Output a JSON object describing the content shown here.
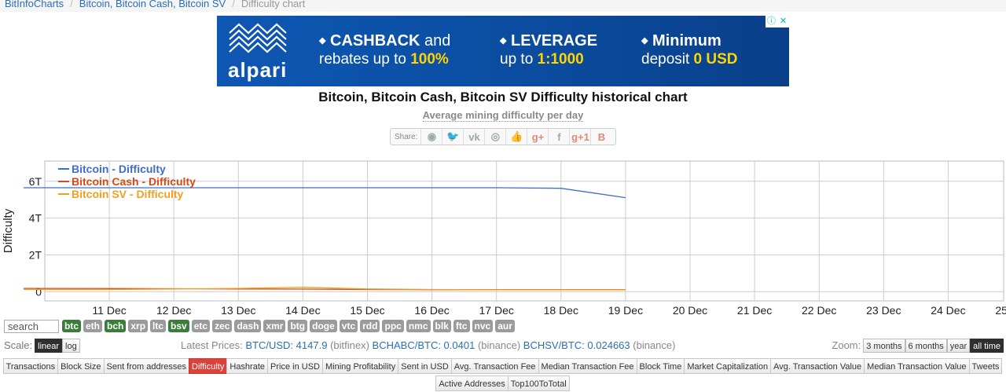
{
  "breadcrumb": {
    "home": "BitInfoCharts",
    "section": "Bitcoin, Bitcoin Cash, Bitcoin SV",
    "current": "Difficulty chart"
  },
  "ad": {
    "brand": "alpari",
    "col1": {
      "line1_bullet": "◆",
      "line1_hl": "CASHBACK",
      "line1_rest": " and",
      "line2": "rebates up to ",
      "line2_hl": "100%"
    },
    "col2": {
      "line1_bullet": "◆",
      "line1_hl": "LEVERAGE",
      "line2": "up to ",
      "line2_hl": "1:1000"
    },
    "col3": {
      "line1_bullet": "◆",
      "line1_hl": "Minimum",
      "line2": "deposit ",
      "line2_hl": "0 USD"
    },
    "info_icon": "ⓘ",
    "close_icon": "✕"
  },
  "page": {
    "title": "Bitcoin, Bitcoin Cash, Bitcoin SV Difficulty historical chart",
    "subtitle": "Average mining difficulty per day"
  },
  "share": {
    "label": "Share:",
    "icons": [
      {
        "name": "reddit-icon",
        "glyph": "◉",
        "cls": ""
      },
      {
        "name": "twitter-icon",
        "glyph": "🐦",
        "cls": "blue"
      },
      {
        "name": "vk-icon",
        "glyph": "vk",
        "cls": ""
      },
      {
        "name": "weibo-icon",
        "glyph": "◎",
        "cls": ""
      },
      {
        "name": "like-icon",
        "glyph": "👍",
        "cls": ""
      },
      {
        "name": "gplus-icon",
        "glyph": "g+",
        "cls": "red"
      },
      {
        "name": "facebook-icon",
        "glyph": "f",
        "cls": ""
      },
      {
        "name": "gplus-one-icon",
        "glyph": "g+1",
        "cls": "red"
      },
      {
        "name": "blogger-icon",
        "glyph": "B",
        "cls": "red"
      }
    ]
  },
  "chart_data": {
    "type": "line",
    "title": "",
    "xlabel": "",
    "ylabel": "Difficulty",
    "x_ticks": [
      "11 Dec",
      "12 Dec",
      "13 Dec",
      "14 Dec",
      "15 Dec",
      "16 Dec",
      "17 Dec",
      "18 Dec",
      "19 Dec",
      "20 Dec",
      "21 Dec",
      "22 Dec",
      "23 Dec",
      "24 Dec",
      "25 Dec"
    ],
    "y_ticks": [
      {
        "value": 0,
        "label": "0"
      },
      {
        "value": 2,
        "label": "2T"
      },
      {
        "value": 4,
        "label": "4T"
      },
      {
        "value": 6,
        "label": "6T"
      }
    ],
    "y_unit_multiplier": "T",
    "ylim": [
      -0.5,
      7.1
    ],
    "xlim_days": [
      "10 Dec",
      "25 Dec"
    ],
    "legend_position": "top-left",
    "grid": true,
    "series": [
      {
        "name": "Bitcoin - Difficulty",
        "color": "#3d6fc9",
        "x": [
          "10 Dec",
          "11 Dec",
          "12 Dec",
          "13 Dec",
          "14 Dec",
          "15 Dec",
          "16 Dec",
          "17 Dec",
          "18 Dec",
          "19 Dec"
        ],
        "y": [
          5.65,
          5.65,
          5.65,
          5.65,
          5.65,
          5.65,
          5.65,
          5.65,
          5.62,
          5.11
        ]
      },
      {
        "name": "Bitcoin Cash - Difficulty",
        "color": "#d44b16",
        "x": [
          "10 Dec",
          "11 Dec",
          "12 Dec",
          "13 Dec",
          "14 Dec",
          "15 Dec",
          "16 Dec",
          "17 Dec",
          "18 Dec",
          "19 Dec"
        ],
        "y": [
          0.18,
          0.17,
          0.16,
          0.15,
          0.14,
          0.12,
          0.11,
          0.11,
          0.11,
          0.11
        ]
      },
      {
        "name": "Bitcoin SV - Difficulty",
        "color": "#f0a020",
        "x": [
          "10 Dec",
          "11 Dec",
          "12 Dec",
          "13 Dec",
          "14 Dec",
          "15 Dec",
          "16 Dec",
          "17 Dec",
          "18 Dec",
          "19 Dec"
        ],
        "y": [
          0.12,
          0.12,
          0.15,
          0.18,
          0.24,
          0.15,
          0.12,
          0.1,
          0.1,
          0.1
        ]
      }
    ]
  },
  "controls": {
    "search_placeholder": "search",
    "coins": [
      {
        "label": "btc",
        "on": true
      },
      {
        "label": "eth",
        "on": false
      },
      {
        "label": "bch",
        "on": true
      },
      {
        "label": "xrp",
        "on": false
      },
      {
        "label": "ltc",
        "on": false
      },
      {
        "label": "bsv",
        "on": true
      },
      {
        "label": "etc",
        "on": false
      },
      {
        "label": "zec",
        "on": false
      },
      {
        "label": "dash",
        "on": false
      },
      {
        "label": "xmr",
        "on": false
      },
      {
        "label": "btg",
        "on": false
      },
      {
        "label": "doge",
        "on": false
      },
      {
        "label": "vtc",
        "on": false
      },
      {
        "label": "rdd",
        "on": false
      },
      {
        "label": "ppc",
        "on": false
      },
      {
        "label": "nmc",
        "on": false
      },
      {
        "label": "blk",
        "on": false
      },
      {
        "label": "ftc",
        "on": false
      },
      {
        "label": "nvc",
        "on": false
      },
      {
        "label": "aur",
        "on": false
      }
    ],
    "scale_label": "Scale:",
    "scale_linear": "linear",
    "scale_log": "log",
    "prices_label": "Latest Prices:",
    "price1_pair": "BTC/USD: 4147.9",
    "price1_src": "(bitfinex)",
    "price2_pair": "BCHABC/BTC: 0.0401",
    "price2_src": "(binance)",
    "price3_pair": "BCHSV/BTC: 0.024663",
    "price3_src": "(binance)",
    "zoom_label": "Zoom:",
    "zoom": [
      {
        "label": "3 months",
        "active": false
      },
      {
        "label": "6 months",
        "active": false
      },
      {
        "label": "year",
        "active": false
      },
      {
        "label": "all time",
        "active": true
      }
    ]
  },
  "tabs_row1": [
    {
      "label": "Transactions"
    },
    {
      "label": "Block Size"
    },
    {
      "label": "Sent from addresses"
    },
    {
      "label": "Difficulty",
      "active": true
    },
    {
      "label": "Hashrate"
    },
    {
      "label": "Price in USD"
    },
    {
      "label": "Mining Profitability"
    },
    {
      "label": "Sent in USD"
    },
    {
      "label": "Avg. Transaction Fee"
    },
    {
      "label": "Median Transaction Fee"
    },
    {
      "label": "Block Time"
    },
    {
      "label": "Market Capitalization"
    },
    {
      "label": "Avg. Transaction Value"
    },
    {
      "label": "Median Transaction Value"
    },
    {
      "label": "Tweets"
    }
  ],
  "tabs_row2": [
    {
      "label": "Active Addresses"
    },
    {
      "label": "Top100ToTotal"
    }
  ]
}
